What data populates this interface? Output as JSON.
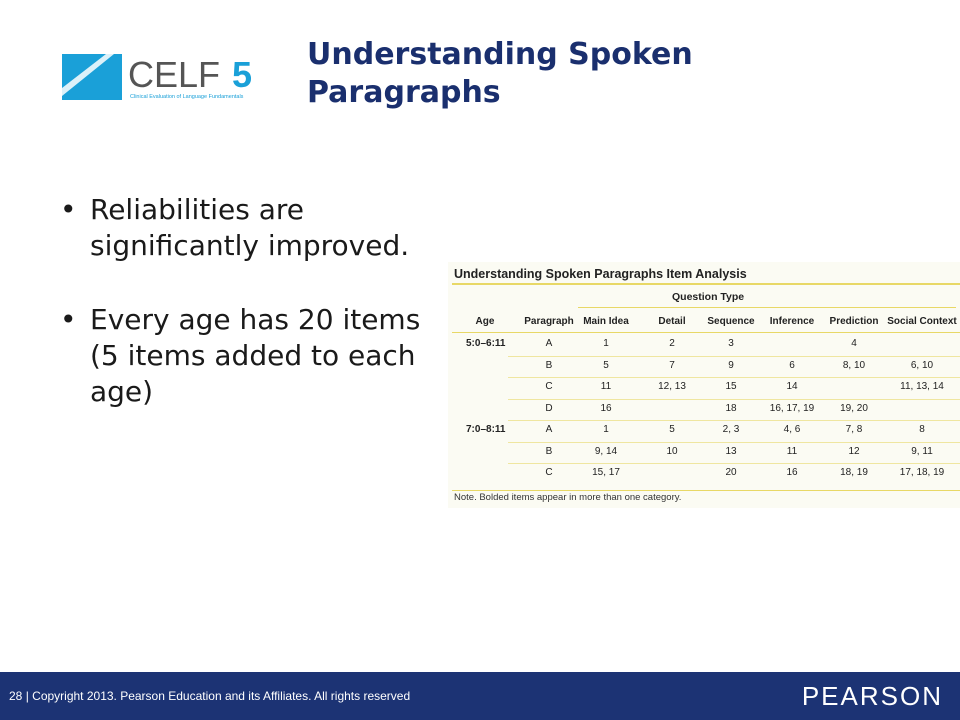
{
  "logo": {
    "text": "CELF",
    "number": "5",
    "tagline": "Clinical Evaluation of Language Fundamentals"
  },
  "slide": {
    "title": "Understanding Spoken Paragraphs"
  },
  "bullets": [
    "Reliabilities are significantly improved.",
    "Every age has 20 items (5 items added to each age)"
  ],
  "bullet_symbol": "•",
  "table": {
    "title": "Understanding Spoken Paragraphs Item Analysis",
    "group_header": "Question Type",
    "columns": [
      "Age",
      "Paragraph",
      "Main Idea",
      "Detail",
      "Sequence",
      "Inference",
      "Prediction",
      "Social Context"
    ],
    "rows": [
      {
        "age": "5:0–6:11",
        "paragraph": "A",
        "main_idea": "1",
        "detail": "2",
        "sequence": "3",
        "inference": "",
        "prediction": "4",
        "social": ""
      },
      {
        "age": "",
        "paragraph": "B",
        "main_idea": "5",
        "detail": "7",
        "sequence": "9",
        "inference": "6",
        "prediction": "8, 10",
        "social": "6, 10"
      },
      {
        "age": "",
        "paragraph": "C",
        "main_idea": "11",
        "detail": "12, 13",
        "sequence": "15",
        "inference": "14",
        "prediction": "",
        "social": "11, 13, 14"
      },
      {
        "age": "",
        "paragraph": "D",
        "main_idea": "16",
        "detail": "",
        "sequence": "18",
        "inference": "16, 17, 19",
        "prediction": "19, 20",
        "social": ""
      },
      {
        "age": "7:0–8:11",
        "paragraph": "A",
        "main_idea": "1",
        "detail": "5",
        "sequence": "2, 3",
        "inference": "4, 6",
        "prediction": "7, 8",
        "social": "8"
      },
      {
        "age": "",
        "paragraph": "B",
        "main_idea": "9, 14",
        "detail": "10",
        "sequence": "13",
        "inference": "11",
        "prediction": "12",
        "social": "9, 11"
      },
      {
        "age": "",
        "paragraph": "C",
        "main_idea": "15, 17",
        "detail": "",
        "sequence": "20",
        "inference": "16",
        "prediction": "18, 19",
        "social": "17, 18, 19"
      }
    ],
    "note": "Note. Bolded items appear in more than one category."
  },
  "footer": {
    "page": "28",
    "copyright": "| Copyright 2013. Pearson Education and its Affiliates. All rights reserved",
    "brand": "PEARSON"
  },
  "colors": {
    "title": "#1a2f6e",
    "footer_bg": "#1c3374",
    "logo_teal": "#1aa0d8",
    "table_rule": "#e8d866"
  }
}
